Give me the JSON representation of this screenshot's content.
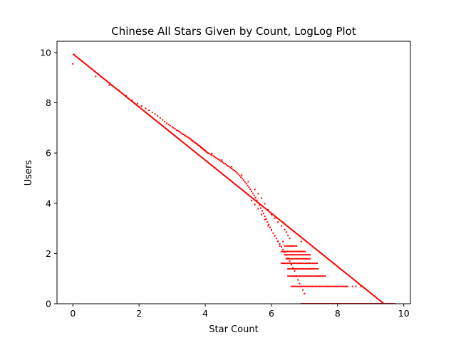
{
  "chart_data": {
    "type": "scatter",
    "title": "Chinese All Stars Given by Count, LogLog Plot",
    "xlabel": "Star Count",
    "ylabel": "Users",
    "xlim": [
      -0.48,
      10.2
    ],
    "ylim": [
      0,
      10.45
    ],
    "x_ticks": [
      0,
      2,
      4,
      6,
      8,
      10
    ],
    "x_tick_labels": [
      "0",
      "2",
      "4",
      "6",
      "8",
      "10"
    ],
    "y_ticks": [
      0,
      2,
      4,
      6,
      8,
      10
    ],
    "y_tick_labels": [
      "0",
      "2",
      "4",
      "6",
      "8",
      "10"
    ],
    "grid": false,
    "legend": "none",
    "color": "#ff0000",
    "points": [
      [
        0.0,
        9.55
      ],
      [
        0.69,
        9.05
      ],
      [
        1.1,
        8.7
      ],
      [
        1.39,
        8.5
      ],
      [
        1.61,
        8.28
      ],
      [
        1.79,
        8.1
      ],
      [
        1.95,
        7.97
      ],
      [
        2.08,
        7.87
      ],
      [
        2.2,
        7.78
      ],
      [
        2.3,
        7.7
      ],
      [
        2.4,
        7.62
      ],
      [
        2.48,
        7.55
      ],
      [
        2.56,
        7.48
      ],
      [
        2.64,
        7.4
      ],
      [
        2.71,
        7.32
      ],
      [
        2.77,
        7.25
      ],
      [
        2.83,
        7.18
      ],
      [
        2.89,
        7.14
      ],
      [
        2.94,
        7.09
      ],
      [
        3.0,
        7.04
      ],
      [
        3.04,
        7.0
      ],
      [
        3.09,
        6.96
      ],
      [
        3.14,
        6.91
      ],
      [
        3.18,
        6.88
      ],
      [
        3.22,
        6.85
      ],
      [
        3.26,
        6.81
      ],
      [
        3.3,
        6.77
      ],
      [
        3.33,
        6.74
      ],
      [
        3.37,
        6.72
      ],
      [
        3.4,
        6.69
      ],
      [
        3.43,
        6.66
      ],
      [
        3.47,
        6.63
      ],
      [
        3.5,
        6.61
      ],
      [
        3.53,
        6.58
      ],
      [
        3.56,
        6.56
      ],
      [
        3.58,
        6.52
      ],
      [
        3.61,
        6.49
      ],
      [
        3.64,
        6.47
      ],
      [
        3.66,
        6.44
      ],
      [
        3.69,
        6.41
      ],
      [
        3.71,
        6.4
      ],
      [
        3.74,
        6.37
      ],
      [
        3.76,
        6.35
      ],
      [
        3.78,
        6.32
      ],
      [
        3.81,
        6.3
      ],
      [
        3.83,
        6.28
      ],
      [
        3.85,
        6.26
      ],
      [
        3.87,
        6.23
      ],
      [
        3.89,
        6.21
      ],
      [
        3.91,
        6.19
      ],
      [
        3.93,
        6.17
      ],
      [
        3.95,
        6.14
      ],
      [
        3.97,
        6.12
      ],
      [
        3.99,
        6.1
      ],
      [
        4.01,
        6.08
      ],
      [
        4.03,
        6.05
      ],
      [
        4.06,
        6.02
      ],
      [
        4.09,
        6.0
      ],
      [
        4.13,
        5.97
      ],
      [
        4.17,
        5.94
      ],
      [
        4.2,
        5.91
      ],
      [
        4.25,
        5.88
      ],
      [
        4.28,
        5.85
      ],
      [
        4.32,
        5.82
      ],
      [
        4.36,
        5.78
      ],
      [
        4.4,
        5.75
      ],
      [
        4.44,
        5.71
      ],
      [
        4.48,
        5.67
      ],
      [
        4.52,
        5.64
      ],
      [
        4.56,
        5.6
      ],
      [
        4.6,
        5.57
      ],
      [
        4.64,
        5.53
      ],
      [
        4.68,
        5.49
      ],
      [
        4.72,
        5.46
      ],
      [
        4.76,
        5.42
      ],
      [
        4.8,
        5.38
      ],
      [
        4.84,
        5.34
      ],
      [
        4.88,
        5.3
      ],
      [
        4.92,
        5.26
      ],
      [
        4.96,
        5.21
      ],
      [
        5.0,
        5.16
      ],
      [
        5.04,
        5.1
      ],
      [
        5.08,
        5.04
      ],
      [
        5.12,
        4.98
      ],
      [
        5.16,
        4.92
      ],
      [
        5.2,
        4.85
      ],
      [
        5.24,
        4.78
      ],
      [
        5.28,
        4.71
      ],
      [
        5.32,
        4.64
      ],
      [
        5.36,
        4.56
      ],
      [
        5.4,
        4.48
      ],
      [
        5.44,
        4.4
      ],
      [
        5.48,
        4.31
      ],
      [
        5.52,
        4.22
      ],
      [
        5.56,
        4.12
      ],
      [
        5.6,
        4.02
      ],
      [
        5.64,
        3.92
      ],
      [
        5.68,
        3.81
      ],
      [
        5.72,
        3.7
      ],
      [
        5.76,
        3.59
      ],
      [
        5.8,
        3.48
      ],
      [
        5.84,
        3.37
      ],
      [
        5.88,
        3.26
      ],
      [
        5.92,
        3.15
      ],
      [
        5.96,
        3.04
      ],
      [
        6.0,
        2.93
      ],
      [
        6.05,
        2.81
      ],
      [
        6.1,
        2.71
      ],
      [
        6.15,
        2.6
      ],
      [
        6.2,
        2.49
      ],
      [
        6.25,
        2.38
      ],
      [
        6.3,
        2.27
      ],
      [
        6.35,
        2.16
      ],
      [
        6.4,
        2.05
      ],
      [
        6.45,
        1.94
      ],
      [
        6.5,
        1.81
      ],
      [
        6.55,
        1.7
      ],
      [
        6.6,
        1.56
      ],
      [
        6.65,
        1.43
      ],
      [
        6.7,
        1.3
      ],
      [
        6.75,
        1.1
      ],
      [
        6.8,
        0.95
      ],
      [
        6.85,
        0.8
      ],
      [
        6.9,
        0.69
      ],
      [
        6.95,
        0.55
      ],
      [
        7.0,
        0.4
      ]
    ],
    "points_upper": [
      [
        4.2,
        5.98
      ],
      [
        4.5,
        5.72
      ],
      [
        4.8,
        5.46
      ],
      [
        5.1,
        5.12
      ],
      [
        5.3,
        4.86
      ],
      [
        5.5,
        4.55
      ],
      [
        5.6,
        4.38
      ],
      [
        5.7,
        4.2
      ],
      [
        5.8,
        3.98
      ],
      [
        5.9,
        3.74
      ],
      [
        6.0,
        3.55
      ],
      [
        6.1,
        3.4
      ],
      [
        6.2,
        3.25
      ],
      [
        6.3,
        3.1
      ],
      [
        6.4,
        2.95
      ],
      [
        6.45,
        2.85
      ],
      [
        6.5,
        2.72
      ],
      [
        6.55,
        2.6
      ]
    ],
    "points_lower": [
      [
        5.4,
        4.1
      ],
      [
        5.5,
        3.95
      ],
      [
        5.6,
        3.78
      ],
      [
        5.7,
        3.55
      ],
      [
        5.8,
        3.35
      ],
      [
        5.9,
        3.1
      ],
      [
        6.0,
        2.95
      ],
      [
        6.1,
        2.7
      ],
      [
        6.2,
        2.48
      ],
      [
        6.25,
        2.3
      ]
    ],
    "bands": [
      {
        "y": 2.3,
        "x_start": 6.4,
        "x_end": 6.8
      },
      {
        "y": 2.08,
        "x_start": 6.3,
        "x_end": 7.05
      },
      {
        "y": 1.95,
        "x_start": 6.4,
        "x_end": 7.2
      },
      {
        "y": 1.79,
        "x_start": 6.45,
        "x_end": 7.2
      },
      {
        "y": 1.61,
        "x_start": 6.3,
        "x_end": 7.4
      },
      {
        "y": 1.39,
        "x_start": 6.5,
        "x_end": 7.4
      },
      {
        "y": 1.1,
        "x_start": 6.5,
        "x_end": 7.65
      },
      {
        "y": 0.69,
        "x_start": 6.6,
        "x_end": 8.3
      },
      {
        "y": 0.0,
        "x_start": 6.9,
        "x_end": 9.75
      }
    ],
    "band_extras": [
      {
        "x": 8.3,
        "y": 0.69
      },
      {
        "x": 8.45,
        "y": 0.69
      },
      {
        "x": 8.55,
        "y": 0.69
      },
      {
        "x": 8.7,
        "y": 0.69
      },
      {
        "x": 6.35,
        "y": 2.48
      },
      {
        "x": 6.9,
        "y": 2.48
      }
    ],
    "fit_line": {
      "x": [
        0.0,
        9.4
      ],
      "y": [
        9.95,
        0.0
      ]
    }
  }
}
